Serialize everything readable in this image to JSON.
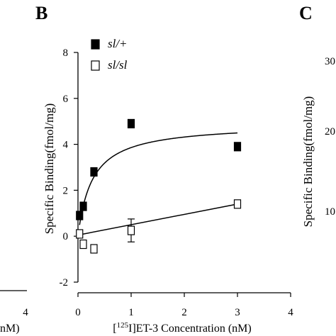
{
  "panel_labels": {
    "b": "B",
    "c": "C"
  },
  "left_fragment": {
    "tick_label": "4",
    "axis_text_tail": "nM)"
  },
  "right_fragment": {
    "ylabel": "Specific Binding(fmol/mg)",
    "tick_labels": [
      "30",
      "20",
      "10"
    ]
  },
  "chart_data": {
    "type": "scatter",
    "xlabel_prefix": "[",
    "xlabel_sup": "125",
    "xlabel_rest": "I]ET-3 Concentration (nM)",
    "ylabel": "Specific Binding(fmol/mg)",
    "xlim": [
      0,
      4
    ],
    "ylim": [
      -2,
      8
    ],
    "x_ticks": [
      0,
      1,
      2,
      3,
      4
    ],
    "y_ticks": [
      -2,
      0,
      2,
      4,
      6,
      8
    ],
    "legend_placement": "top-left",
    "series": [
      {
        "name": "sl/+",
        "marker": "filled-square",
        "color": "#000000",
        "points": [
          {
            "x": 0.03,
            "y": 0.9
          },
          {
            "x": 0.1,
            "y": 1.3
          },
          {
            "x": 0.3,
            "y": 2.8
          },
          {
            "x": 1.0,
            "y": 4.9
          },
          {
            "x": 3.0,
            "y": 3.9
          }
        ],
        "fit": {
          "model": "saturation",
          "bmax": 4.9,
          "kd": 0.27
        }
      },
      {
        "name": "sl/sl",
        "marker": "open-square",
        "color": "#000000",
        "points": [
          {
            "x": 0.03,
            "y": 0.1,
            "err": 0
          },
          {
            "x": 0.1,
            "y": -0.35,
            "err": 0
          },
          {
            "x": 0.3,
            "y": -0.55,
            "err": 0
          },
          {
            "x": 1.0,
            "y": 0.25,
            "err": 0.5
          },
          {
            "x": 3.0,
            "y": 1.4,
            "err": 0
          }
        ],
        "fit": {
          "model": "linear",
          "x0": 0,
          "y0": 0.05,
          "x1": 3.0,
          "y1": 1.4
        }
      }
    ]
  }
}
